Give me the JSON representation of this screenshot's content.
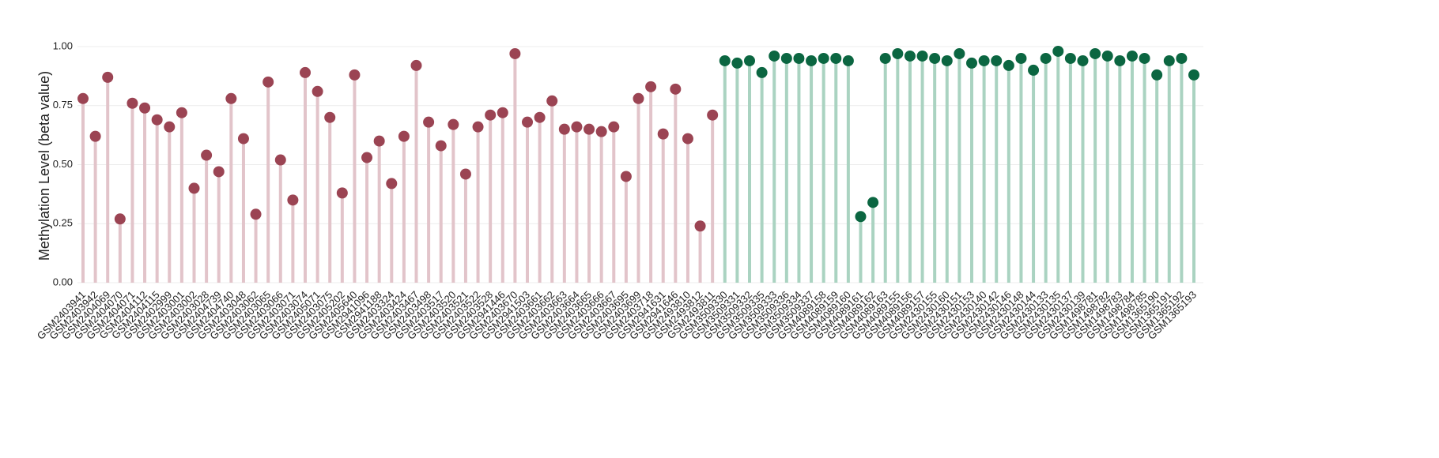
{
  "chart_data": {
    "type": "lollipop",
    "y_label": "Methylation Level (beta value)",
    "categories": [
      "GSM2403941",
      "GSM2403942",
      "GSM2404069",
      "GSM2404070",
      "GSM2404071",
      "GSM2404112",
      "GSM2404115",
      "GSM2402999",
      "GSM2403001",
      "GSM2403002",
      "GSM2403028",
      "GSM2404739",
      "GSM2404740",
      "GSM2403048",
      "GSM2403062",
      "GSM2403065",
      "GSM2403066",
      "GSM2403071",
      "GSM2403074",
      "GSM2405071",
      "GSM2403075",
      "GSM2405202",
      "GSM2405640",
      "GSM2941096",
      "GSM2941188",
      "GSM2403324",
      "GSM2403424",
      "GSM2403467",
      "GSM2403498",
      "GSM2403517",
      "GSM2403520",
      "GSM2403521",
      "GSM2403522",
      "GSM2403528",
      "GSM2941446",
      "GSM2403670",
      "GSM2941503",
      "GSM2403661",
      "GSM2403662",
      "GSM2403663",
      "GSM2403664",
      "GSM2403665",
      "GSM2403666",
      "GSM2403667",
      "GSM2403695",
      "GSM2403699",
      "GSM2403718",
      "GSM2941631",
      "GSM2941646",
      "GSM2493810",
      "GSM2493812",
      "GSM2493811",
      "GSM3509330",
      "GSM3509331",
      "GSM3509332",
      "GSM3509335",
      "GSM3509333",
      "GSM3509336",
      "GSM3509334",
      "GSM3509337",
      "GSM4089158",
      "GSM4089159",
      "GSM4089160",
      "GSM4089161",
      "GSM4089162",
      "GSM4089163",
      "GSM4089155",
      "GSM4089156",
      "GSM4089157",
      "GSM2430155",
      "GSM2430160",
      "GSM2430151",
      "GSM2430153",
      "GSM2430140",
      "GSM2430142",
      "GSM2430146",
      "GSM2430148",
      "GSM2430144",
      "GSM2430133",
      "GSM2430135",
      "GSM2430137",
      "GSM2430139",
      "GSM1498781",
      "GSM1498782",
      "GSM1498783",
      "GSM1498784",
      "GSM1498785",
      "GSM1365190",
      "GSM1365191",
      "GSM1365192",
      "GSM1365193"
    ],
    "series": [
      {
        "color": "#9b4453",
        "stem_color": "#e2c4ca",
        "values": [
          0.78,
          0.62,
          0.87,
          0.27,
          0.76,
          0.74,
          0.69,
          0.66,
          0.72,
          0.4,
          0.54,
          0.47,
          0.78,
          0.61,
          0.29,
          0.85,
          0.52,
          0.35,
          0.89,
          0.81,
          0.7,
          0.38,
          0.88,
          0.53,
          0.6,
          0.42,
          0.62,
          0.92,
          0.68,
          0.58,
          0.67,
          0.46,
          0.66,
          0.71,
          0.72,
          0.97,
          0.68,
          0.7,
          0.77,
          0.65,
          0.66,
          0.65,
          0.64,
          0.66,
          0.45,
          0.78,
          0.83,
          0.63,
          0.82,
          0.61,
          0.24,
          0.71,
          null,
          null,
          null,
          null,
          null,
          null,
          null,
          null,
          null,
          null,
          null,
          null,
          null,
          null,
          null,
          null,
          null,
          null,
          null,
          null,
          null,
          null,
          null,
          null,
          null,
          null,
          null,
          null,
          null,
          null,
          null,
          null,
          null,
          null,
          null,
          null,
          null,
          null,
          null
        ]
      },
      {
        "color": "#0b6641",
        "stem_color": "#aad3c1",
        "values": [
          null,
          null,
          null,
          null,
          null,
          null,
          null,
          null,
          null,
          null,
          null,
          null,
          null,
          null,
          null,
          null,
          null,
          null,
          null,
          null,
          null,
          null,
          null,
          null,
          null,
          null,
          null,
          null,
          null,
          null,
          null,
          null,
          null,
          null,
          null,
          null,
          null,
          null,
          null,
          null,
          null,
          null,
          null,
          null,
          null,
          null,
          null,
          null,
          null,
          null,
          null,
          null,
          0.94,
          0.93,
          0.94,
          0.89,
          0.96,
          0.95,
          0.95,
          0.94,
          0.95,
          0.95,
          0.94,
          0.28,
          0.34,
          0.95,
          0.97,
          0.96,
          0.96,
          0.95,
          0.94,
          0.97,
          0.93,
          0.94,
          0.94,
          0.92,
          0.95,
          0.9,
          0.95,
          0.98,
          0.95,
          0.94,
          0.97,
          0.96,
          0.94,
          0.96,
          0.95,
          0.88,
          0.94,
          0.95,
          0.88
        ]
      }
    ],
    "ylim": [
      0,
      1.0
    ],
    "yticks": [
      {
        "value": 0,
        "label": "0.00"
      },
      {
        "value": 0.25,
        "label": "0.25"
      },
      {
        "value": 0.5,
        "label": "0.50"
      },
      {
        "value": 0.75,
        "label": "0.75"
      },
      {
        "value": 1.0,
        "label": "1.00"
      }
    ],
    "grid": true
  }
}
